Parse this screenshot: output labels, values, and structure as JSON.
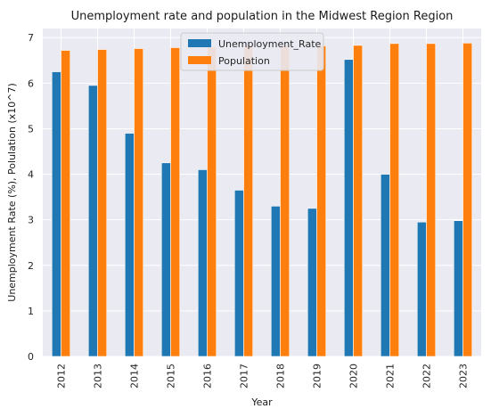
{
  "chart_data": {
    "type": "bar",
    "title": "Unemployment rate and population in the Midwest Region Region",
    "xlabel": "Year",
    "ylabel": "Unemployment Rate (%), Polulation (x10^7)",
    "categories": [
      "2012",
      "2013",
      "2014",
      "2015",
      "2016",
      "2017",
      "2018",
      "2019",
      "2020",
      "2021",
      "2022",
      "2023"
    ],
    "series": [
      {
        "name": "Unemployment_Rate",
        "color": "#1f77b4",
        "values": [
          6.25,
          5.95,
          4.9,
          4.25,
          4.1,
          3.65,
          3.3,
          3.25,
          6.52,
          4.0,
          2.95,
          2.98
        ]
      },
      {
        "name": "Population",
        "color": "#ff7f0e",
        "values": [
          6.72,
          6.74,
          6.76,
          6.78,
          6.79,
          6.8,
          6.81,
          6.82,
          6.83,
          6.87,
          6.87,
          6.88
        ]
      }
    ],
    "ylim": [
      0,
      7.2
    ],
    "yticks": [
      "0",
      "1",
      "2",
      "3",
      "4",
      "5",
      "6",
      "7"
    ],
    "grid": true,
    "legend_position": "top-center",
    "background_color": "#eaeaf2"
  }
}
